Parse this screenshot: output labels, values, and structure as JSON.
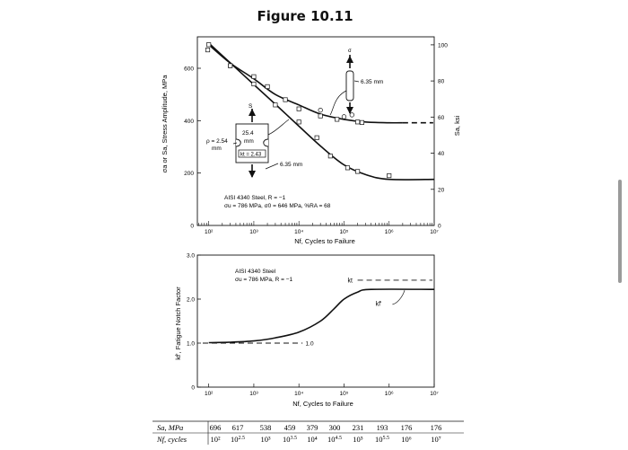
{
  "figure_title": "Figure 10.11",
  "chart_data": [
    {
      "type": "line",
      "title": "",
      "xlabel": "Nf, Cycles to Failure",
      "ylabel_left": "σa or Sa, Stress Amplitude, MPa",
      "ylabel_right": "Sa, ksi",
      "x_scale": "log",
      "xlim": [
        56,
        10000000
      ],
      "ylim": [
        0,
        720
      ],
      "x_ticks": [
        100,
        1000,
        10000,
        100000,
        1000000,
        10000000
      ],
      "x_tick_labels": [
        "10²",
        "10³",
        "10⁴",
        "10⁵",
        "10⁶",
        "10⁷"
      ],
      "y_ticks": [
        0,
        200,
        400,
        600
      ],
      "y_tick_labels": [
        "0",
        "200",
        "400",
        "600"
      ],
      "right_ticks_ksi": [
        0,
        20,
        40,
        60,
        80,
        100
      ],
      "right_tick_labels": [
        "0",
        "20",
        "40",
        "60",
        "80",
        "100"
      ],
      "series": [
        {
          "name": "",
          "x": [
            100,
            316,
            1000,
            3162,
            10000,
            31623,
            100000,
            316228,
            1000000,
            10000000
          ],
          "y": [
            696,
            617,
            538,
            459,
            379,
            300,
            231,
            193,
            176,
            176
          ]
        },
        {
          "name": "",
          "x": [
            100,
            300,
            1000,
            3000,
            10000,
            30000,
            100000,
            300000,
            1000000,
            2000000
          ],
          "y": [
            690,
            620,
            560,
            500,
            460,
            425,
            405,
            395,
            392,
            392
          ]
        }
      ],
      "points_unnotched": [
        [
          95,
          670
        ],
        [
          300,
          610
        ],
        [
          1000,
          568
        ],
        [
          2000,
          530
        ],
        [
          5000,
          480
        ],
        [
          10000,
          445
        ],
        [
          30000,
          418
        ],
        [
          70000,
          405
        ],
        [
          200000,
          395
        ],
        [
          250000,
          393
        ]
      ],
      "points_unnotched_open": [
        [
          30000,
          440
        ],
        [
          100000,
          415
        ],
        [
          150000,
          422
        ]
      ],
      "points_notched": [
        [
          100,
          690
        ],
        [
          300,
          610
        ],
        [
          1000,
          540
        ],
        [
          3000,
          460
        ],
        [
          10000,
          395
        ],
        [
          25000,
          335
        ],
        [
          50000,
          265
        ],
        [
          120000,
          220
        ],
        [
          200000,
          206
        ],
        [
          1000000,
          190
        ]
      ],
      "annotations": {
        "material": "AISI 4340 Steel, R = −1",
        "props": "σu = 786 MPa, σ0 = 646 MPa, %RA = 68",
        "smooth_dim": "6.35 mm",
        "notched_width": "25.4",
        "notched_width_unit": "mm",
        "kt_label": "kt = 2.43",
        "rho_label": "ρ = 2.54",
        "rho_unit": "mm",
        "notched_dim": "6.35 mm",
        "sigma_symbol": "σ",
        "s_symbol": "S"
      }
    },
    {
      "type": "line",
      "title": "",
      "xlabel": "Nf, Cycles to Failure",
      "ylabel": "kf', Fatigue Notch Factor",
      "x_scale": "log",
      "xlim": [
        56,
        10000000
      ],
      "ylim": [
        0,
        3.0
      ],
      "y_ticks": [
        0,
        1.0,
        2.0,
        3.0
      ],
      "y_tick_labels": [
        "0",
        "1.0",
        "2.0",
        "3.0"
      ],
      "x_ticks": [
        100,
        1000,
        10000,
        100000,
        1000000,
        10000000
      ],
      "x_tick_labels": [
        "10²",
        "10³",
        "10⁴",
        "10⁵",
        "10⁶",
        "10⁷"
      ],
      "series": [
        {
          "name": "",
          "x": [
            100,
            300,
            1000,
            3000,
            10000,
            30000,
            60000,
            100000,
            200000,
            400000,
            10000000
          ],
          "y": [
            1.01,
            1.02,
            1.05,
            1.12,
            1.25,
            1.5,
            1.78,
            2.0,
            2.16,
            2.22,
            2.22
          ]
        }
      ],
      "reference_lines": [
        {
          "y": 1.0,
          "label": "1.0",
          "style": "dashed"
        },
        {
          "y": 2.43,
          "label": "kt",
          "style": "dashed"
        }
      ],
      "curve_label": "kf'",
      "annotations": {
        "material": "AISI 4340 Steel",
        "props": "σu = 786 MPa, R = −1"
      }
    },
    {
      "type": "table",
      "rows": [
        {
          "label": "Sa, MPa",
          "values": [
            "696",
            "617",
            "538",
            "459",
            "379",
            "300",
            "231",
            "193",
            "176",
            "176"
          ]
        },
        {
          "label": "Nf, cycles",
          "values": [
            "10²",
            "10^2.5",
            "10³",
            "10^3.5",
            "10⁴",
            "10^4.5",
            "10⁵",
            "10^5.5",
            "10⁶",
            "10⁷"
          ]
        }
      ]
    }
  ]
}
